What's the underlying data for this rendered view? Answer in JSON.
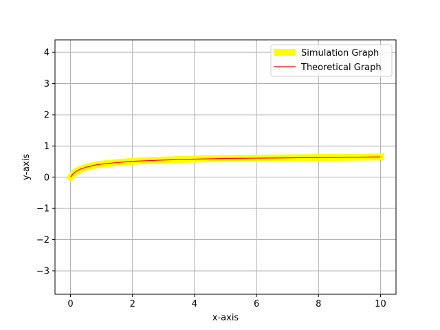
{
  "chart_data": {
    "type": "line",
    "xlabel": "x-axis",
    "ylabel": "y-axis",
    "xlim": [
      -0.5,
      10.5
    ],
    "ylim": [
      -3.75,
      4.4
    ],
    "xticks": [
      0,
      2,
      4,
      6,
      8,
      10
    ],
    "yticks": [
      -3,
      -2,
      -1,
      0,
      1,
      2,
      3,
      4
    ],
    "xtick_labels": [
      "0",
      "2",
      "4",
      "6",
      "8",
      "10"
    ],
    "ytick_labels": [
      "−3",
      "−2",
      "−1",
      "0",
      "1",
      "2",
      "3",
      "4"
    ],
    "grid": true,
    "legend_position": "top-right",
    "series": [
      {
        "name": "Simulation Graph",
        "color": "#ffff00",
        "x": [
          0,
          0.1,
          0.2,
          0.3,
          0.5,
          0.75,
          1,
          1.5,
          2,
          2.5,
          3,
          4,
          5,
          6,
          7,
          8,
          9,
          10
        ],
        "y": [
          0.0,
          0.13,
          0.2,
          0.25,
          0.32,
          0.38,
          0.42,
          0.47,
          0.51,
          0.53,
          0.55,
          0.58,
          0.6,
          0.61,
          0.62,
          0.63,
          0.64,
          0.65
        ]
      },
      {
        "name": "Theoretical Graph",
        "color": "#ff0000",
        "x": [
          0,
          0.1,
          0.2,
          0.3,
          0.5,
          0.75,
          1,
          1.5,
          2,
          2.5,
          3,
          4,
          5,
          6,
          7,
          8,
          9,
          10
        ],
        "y": [
          0.0,
          0.13,
          0.2,
          0.25,
          0.32,
          0.38,
          0.42,
          0.47,
          0.51,
          0.53,
          0.55,
          0.58,
          0.6,
          0.61,
          0.62,
          0.63,
          0.64,
          0.65
        ]
      }
    ]
  }
}
